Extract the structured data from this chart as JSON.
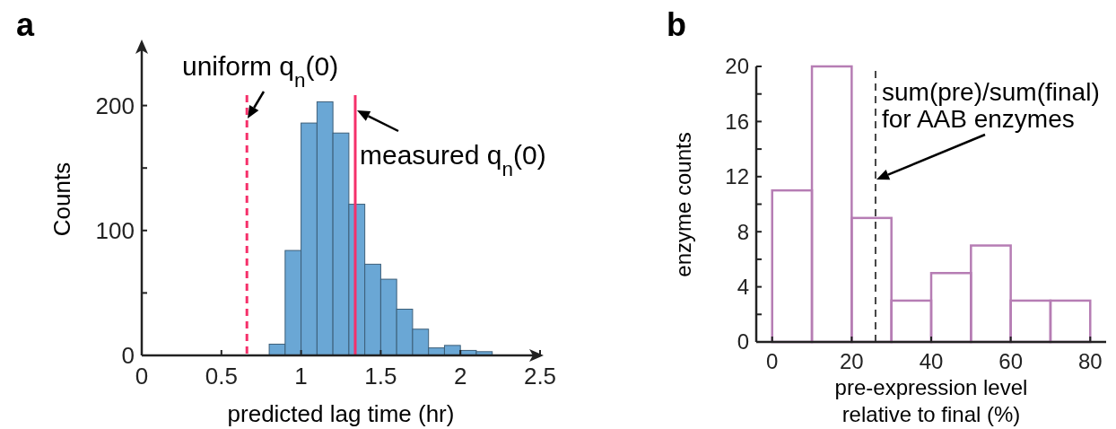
{
  "chart_data": [
    {
      "type": "histogram",
      "annotations": [
        "a"
      ],
      "xlabel": "predicted lag time (hr)",
      "ylabel": "Counts",
      "color": "#6aa7d5",
      "bins": [
        0.8,
        0.9,
        1.0,
        1.1,
        1.2,
        1.3,
        1.4,
        1.5,
        1.6,
        1.7,
        1.8,
        1.9,
        2.0,
        2.1,
        2.2
      ],
      "values": [
        9,
        84,
        186,
        203,
        178,
        121,
        73,
        61,
        37,
        21,
        6,
        8,
        4,
        3
      ],
      "xlim": [
        0,
        2.5
      ],
      "xticks": [
        0,
        0.5,
        1,
        1.5,
        2,
        2.5
      ],
      "ylim": [
        0,
        250
      ],
      "yticks": [
        0,
        {
          "value": 50,
          "label": null
        },
        100,
        {
          "value": 150,
          "label": null
        },
        200
      ],
      "ref_lines": [
        {
          "axis": "x",
          "value": 0.66,
          "label": "uniform q$_{n}$(0)",
          "color": "#f5306a",
          "line_style": "dashed"
        },
        {
          "axis": "x",
          "value": 1.34,
          "label": "measured q$_{n}$(0)",
          "color": "#f5306a",
          "line_style": "solid"
        }
      ]
    },
    {
      "type": "histogram",
      "annotations": [
        "b"
      ],
      "xlabel": "pre-expression level\nrelative to final (%)",
      "ylabel": "enzyme counts",
      "color": "#b67db4",
      "bins": [
        0,
        10,
        20,
        30,
        40,
        50,
        60,
        70,
        80
      ],
      "values": [
        11,
        20,
        9,
        3,
        5,
        7,
        3,
        3
      ],
      "xlim": [
        -4,
        84
      ],
      "xticks": [
        0,
        20,
        40,
        60,
        80
      ],
      "ylim": [
        0,
        20
      ],
      "yticks": [
        0,
        {
          "value": 2,
          "label": null
        },
        4,
        {
          "value": 6,
          "label": null
        },
        8,
        {
          "value": 10,
          "label": null
        },
        12,
        {
          "value": 14,
          "label": null
        },
        16,
        {
          "value": 18,
          "label": null
        },
        20
      ],
      "ref_lines": [
        {
          "axis": "x",
          "value": 26,
          "label": "sum(pre)/sum(final)\nfor AAB enzymes",
          "color": "#444444",
          "line_style": "dashed"
        }
      ]
    }
  ]
}
